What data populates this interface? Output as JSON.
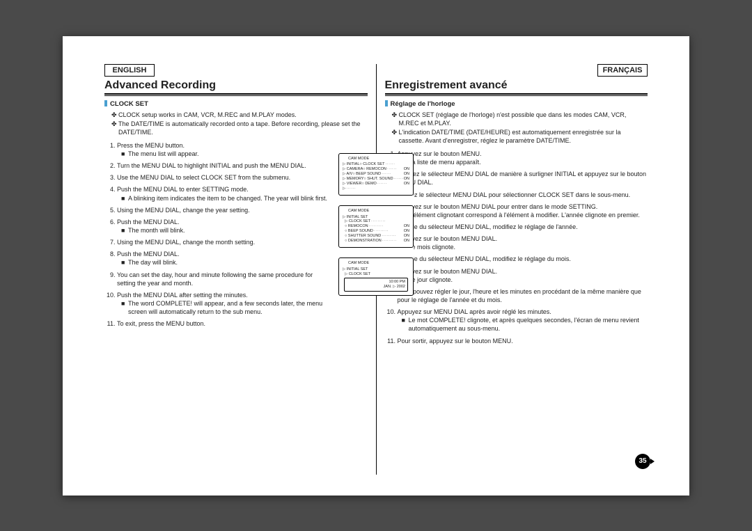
{
  "left": {
    "lang": "ENGLISH",
    "title": "Advanced Recording",
    "section": "CLOCK SET",
    "notes": [
      "CLOCK setup works in CAM, VCR, M.REC and M.PLAY modes.",
      "The DATE/TIME is automatically recorded onto a tape. Before recording, please set the DATE/TIME."
    ],
    "steps": [
      {
        "t": "Press the MENU button.",
        "sub": [
          "The menu list will appear."
        ]
      },
      {
        "t": "Turn the MENU DIAL to highlight INITIAL and push the MENU DIAL."
      },
      {
        "t": "Use the MENU DIAL to select CLOCK SET from the submenu."
      },
      {
        "t": "Push the MENU DIAL to enter SETTING mode.",
        "sub": [
          "A blinking item indicates the item to be changed. The year will blink first."
        ]
      },
      {
        "t": "Using the MENU DIAL, change the year setting."
      },
      {
        "t": "Push the MENU DIAL.",
        "sub": [
          "The month will blink."
        ]
      },
      {
        "t": "Using the MENU DIAL, change the month setting."
      },
      {
        "t": "Push the MENU DIAL.",
        "sub": [
          "The day will blink."
        ]
      },
      {
        "t": "You can set the day, hour and minute following the same procedure for setting the year and month."
      },
      {
        "t": "Push the MENU DIAL after setting the minutes.",
        "sub": [
          "The word COMPLETE! will appear, and a few seconds later, the menu screen will automatically return to the sub menu."
        ]
      },
      {
        "t": "To exit, press the MENU button."
      }
    ]
  },
  "right": {
    "lang": "FRANÇAIS",
    "title": "Enregistrement avancé",
    "section": "Réglage de l'horloge",
    "notes": [
      "CLOCK SET (réglage de l'horloge) n'est possible que dans les modes CAM, VCR, M.REC et M.PLAY.",
      "L'indication DATE/TIME (DATE/HEURE) est automatiquement enregistrée sur la cassette. Avant d'enregistrer, réglez le paramètre DATE/TIME."
    ],
    "steps": [
      {
        "t": "Appuyez sur le bouton MENU.",
        "sub": [
          "La liste de menu apparaît."
        ]
      },
      {
        "t": "Tournez le sélecteur MENU DIAL de manière à surligner INITIAL et appuyez sur le bouton MENU DIAL."
      },
      {
        "t": "Utilisez le sélecteur MENU DIAL pour sélectionner CLOCK SET dans le sous-menu."
      },
      {
        "t": "Appuyez sur le bouton MENU DIAL pour entrer dans le mode SETTING.",
        "sub": [
          "L'élément clignotant correspond à l'élément à modifier. L'année clignote en premier."
        ]
      },
      {
        "t": "À l'aide du sélecteur MENU DIAL, modifiez le réglage de l'année."
      },
      {
        "t": "Appuyez sur le bouton MENU DIAL.",
        "sub": [
          "Le mois clignote."
        ]
      },
      {
        "t": "À l'aide du sélecteur MENU DIAL, modifiez le réglage du mois."
      },
      {
        "t": "Appuyez sur le bouton MENU DIAL.",
        "sub": [
          "Le jour clignote."
        ]
      },
      {
        "t": "Vous pouvez régler le jour, l'heure et les minutes en procédant de la même manière que pour le réglage de l'année et du mois."
      },
      {
        "t": "Appuyez sur MENU DIAL après avoir réglé les minutes.",
        "sub": [
          "Le mot COMPLETE! clignote, et après quelques secondes, l'écran de menu revient automatiquement au sous-menu."
        ]
      },
      {
        "t": "Pour sortir, appuyez sur le bouton MENU."
      }
    ]
  },
  "figs": {
    "f1": {
      "header": "CAM MODE",
      "rows": [
        [
          "▷ INITIAL",
          "○ CLOCK SET",
          ""
        ],
        [
          "▷ CAMERA",
          "○ REMOCON",
          "ON"
        ],
        [
          "▷ A/V",
          "○ BEEP SOUND",
          "ON"
        ],
        [
          "▷ MEMORY",
          "○ SHUT. SOUND",
          "ON"
        ],
        [
          "▷ VIEWER",
          "○ DEMO",
          "ON"
        ],
        [
          "▷",
          "",
          ""
        ]
      ]
    },
    "f2": {
      "header": "CAM MODE",
      "sub": "▷ INITIAL SET",
      "rows": [
        [
          "▷ CLOCK SET",
          ""
        ],
        [
          "○ REMOCON",
          "ON"
        ],
        [
          "○ BEEP SOUND",
          "ON"
        ],
        [
          "○ SHUTTER SOUND",
          "ON"
        ],
        [
          "○ DEMONSTRATION",
          "ON"
        ]
      ]
    },
    "f3": {
      "header": "CAM MODE",
      "sub": "▷ INITIAL SET",
      "row": "▷ CLOCK SET",
      "time": "10:00 PM",
      "date": "JAN. ▷ 2002"
    }
  },
  "pagenum": "35"
}
